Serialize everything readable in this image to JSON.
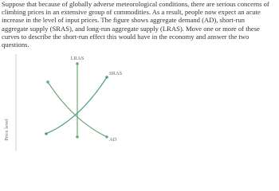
{
  "prompt": "Suppose that because of globally adverse meteorological conditions, there are serious concerns of climbing prices in an extensive group of commodities. As a result, people now expect an acute increase in the level of input prices. The figure shows aggregate demand (AD), short-run aggregate supply (SRAS), and long-run aggregate supply (LRAS). Move one or more of these curves to describe the short-run effect this would have in the economy and answer the two questions.",
  "graph": {
    "y_axis_label": "Price level",
    "curves": {
      "lras": "LRAS",
      "sras": "SRAS",
      "ad": "AD"
    }
  }
}
